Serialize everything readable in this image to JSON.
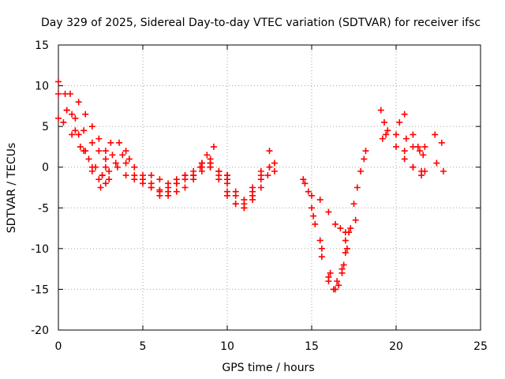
{
  "chart_data": {
    "type": "scatter",
    "title": "Day 329 of 2025, Sidereal Day-to-day VTEC variation (SDTVAR) for receiver ifsc",
    "xlabel": "GPS time / hours",
    "ylabel": "SDTVAR / TECUs",
    "xlim": [
      0,
      25
    ],
    "ylim": [
      -20,
      15
    ],
    "xticks": [
      "0",
      "5",
      "10",
      "15",
      "20",
      "25"
    ],
    "yticks": [
      "15",
      "10",
      "5",
      "0",
      "-5",
      "-10",
      "-15",
      "-20"
    ],
    "grid": true,
    "marker": "+",
    "color": "#ff0000",
    "tracks": [
      {
        "x": [
          0.0,
          0.4,
          0.8,
          1.2,
          1.6,
          2.0,
          2.4,
          2.6
        ],
        "y": [
          10.5,
          9.0,
          6.5,
          4.0,
          2.0,
          0.0,
          -1.5,
          -1.0
        ]
      },
      {
        "x": [
          0.0,
          0.5,
          1.0,
          1.5,
          2.0,
          2.5,
          2.8
        ],
        "y": [
          9.0,
          7.0,
          4.5,
          2.0,
          -0.5,
          -2.5,
          -2.0
        ]
      },
      {
        "x": [
          0.0,
          0.3,
          0.8,
          1.3,
          1.8,
          2.2,
          2.6,
          3.0,
          3.4,
          3.8,
          4.2
        ],
        "y": [
          6.0,
          5.5,
          4.0,
          2.5,
          1.0,
          0.0,
          -1.0,
          -0.5,
          0.5,
          1.5,
          1.0
        ]
      },
      {
        "x": [
          0.7,
          1.2,
          1.6,
          2.0,
          2.4,
          2.8,
          3.1
        ],
        "y": [
          9.0,
          8.0,
          6.5,
          5.0,
          3.5,
          2.0,
          3.0
        ]
      },
      {
        "x": [
          0.5,
          1.0,
          1.5,
          2.0,
          2.4,
          2.8
        ],
        "y": [
          7.0,
          6.0,
          4.5,
          3.0,
          2.0,
          1.0
        ]
      },
      {
        "x": [
          2.8,
          3.2,
          3.6,
          4.0,
          4.5,
          5.0,
          5.5,
          6.0,
          6.5,
          7.0,
          7.5,
          8.0,
          8.4,
          8.8,
          9.2
        ],
        "y": [
          0.0,
          1.5,
          3.0,
          2.0,
          0.0,
          -1.0,
          -2.0,
          -3.0,
          -3.5,
          -3.0,
          -2.5,
          -1.5,
          0.0,
          1.5,
          2.5
        ]
      },
      {
        "x": [
          3.0,
          3.5,
          4.0,
          4.5,
          5.0,
          5.5,
          6.0,
          6.5,
          7.0,
          7.5,
          8.0,
          8.5,
          9.0
        ],
        "y": [
          -1.5,
          0.0,
          0.5,
          -1.0,
          -1.5,
          -2.5,
          -3.5,
          -3.0,
          -2.0,
          -1.0,
          -0.5,
          0.5,
          1.0
        ]
      },
      {
        "x": [
          4.0,
          4.5,
          5.0,
          5.5,
          6.0,
          6.5,
          7.0,
          7.5,
          8.0,
          8.5,
          9.0,
          9.5,
          10.0
        ],
        "y": [
          -1.0,
          -1.5,
          -2.0,
          -2.5,
          -2.8,
          -2.5,
          -2.0,
          -1.5,
          -1.0,
          -0.5,
          0.0,
          -0.5,
          -1.5
        ]
      },
      {
        "x": [
          5.5,
          6.0,
          6.5,
          7.0,
          7.5
        ],
        "y": [
          -1.0,
          -1.5,
          -2.0,
          -1.5,
          -1.0
        ]
      },
      {
        "x": [
          8.5,
          9.0,
          9.5,
          10.0,
          10.5,
          11.0,
          11.5,
          12.0,
          12.5
        ],
        "y": [
          0.5,
          0.0,
          -1.0,
          -3.0,
          -4.5,
          -5.0,
          -3.0,
          -0.5,
          2.0
        ]
      },
      {
        "x": [
          8.0,
          8.5,
          9.0,
          9.5,
          10.0,
          10.5,
          11.0,
          11.5,
          12.0,
          12.5
        ],
        "y": [
          -1.0,
          0.0,
          0.5,
          -1.5,
          -3.5,
          -4.5,
          -5.0,
          -3.5,
          -1.5,
          0.0
        ]
      },
      {
        "x": [
          9.5,
          10.0,
          10.5,
          11.0,
          11.5,
          12.0,
          12.5,
          12.8
        ],
        "y": [
          -0.5,
          -2.0,
          -3.5,
          -4.0,
          -2.5,
          -1.0,
          0.0,
          0.5
        ]
      },
      {
        "x": [
          9.0,
          9.5,
          10.0
        ],
        "y": [
          0.5,
          -0.5,
          -1.0
        ]
      },
      {
        "x": [
          10.0,
          10.5,
          11.0,
          11.5,
          12.0,
          12.4,
          12.8
        ],
        "y": [
          -1.0,
          -3.0,
          -4.5,
          -4.0,
          -2.5,
          -1.0,
          -0.5
        ]
      },
      {
        "x": [
          14.5,
          15.0,
          15.5,
          16.0,
          16.4,
          16.8,
          17.0,
          17.2
        ],
        "y": [
          -1.5,
          -5.0,
          -9.0,
          -13.5,
          -15.0,
          -13.0,
          -10.5,
          -8.0
        ]
      },
      {
        "x": [
          14.8,
          15.2,
          15.6,
          16.0,
          16.3,
          16.6,
          16.9,
          17.1
        ],
        "y": [
          -3.0,
          -7.0,
          -11.0,
          -14.0,
          -15.0,
          -14.5,
          -12.0,
          -10.0
        ]
      },
      {
        "x": [
          14.6,
          15.1,
          15.6,
          16.1,
          16.5,
          16.8,
          17.0
        ],
        "y": [
          -2.0,
          -6.0,
          -10.0,
          -13.0,
          -14.0,
          -12.5,
          -9.0
        ]
      },
      {
        "x": [
          15.0,
          15.5,
          16.0,
          16.4,
          16.7,
          17.0,
          17.3,
          17.6
        ],
        "y": [
          -3.5,
          -4.0,
          -5.5,
          -7.0,
          -7.5,
          -8.0,
          -7.5,
          -6.5
        ]
      },
      {
        "x": [
          17.5,
          17.7,
          17.9,
          18.1,
          18.2
        ],
        "y": [
          -4.5,
          -2.5,
          -0.5,
          1.0,
          2.0
        ]
      },
      {
        "x": [
          19.1,
          19.3,
          19.5
        ],
        "y": [
          7.0,
          5.5,
          4.5
        ]
      },
      {
        "x": [
          19.2,
          19.4
        ],
        "y": [
          3.5,
          4.0
        ]
      },
      {
        "x": [
          20.0,
          20.5,
          21.0,
          21.3,
          21.6
        ],
        "y": [
          4.0,
          6.5,
          4.0,
          2.5,
          1.5
        ]
      },
      {
        "x": [
          20.5,
          21.0,
          21.5,
          21.7
        ],
        "y": [
          2.0,
          0.0,
          -1.0,
          -0.5
        ]
      },
      {
        "x": [
          20.0,
          20.5,
          21.0,
          21.5
        ],
        "y": [
          2.5,
          1.0,
          0.0,
          -0.5
        ]
      },
      {
        "x": [
          20.2,
          20.6,
          21.0,
          21.4,
          21.7
        ],
        "y": [
          5.5,
          3.5,
          2.5,
          2.0,
          2.5
        ]
      },
      {
        "x": [
          22.3,
          22.7
        ],
        "y": [
          4.0,
          3.0
        ]
      },
      {
        "x": [
          22.4,
          22.8
        ],
        "y": [
          0.5,
          -0.5
        ]
      }
    ]
  }
}
